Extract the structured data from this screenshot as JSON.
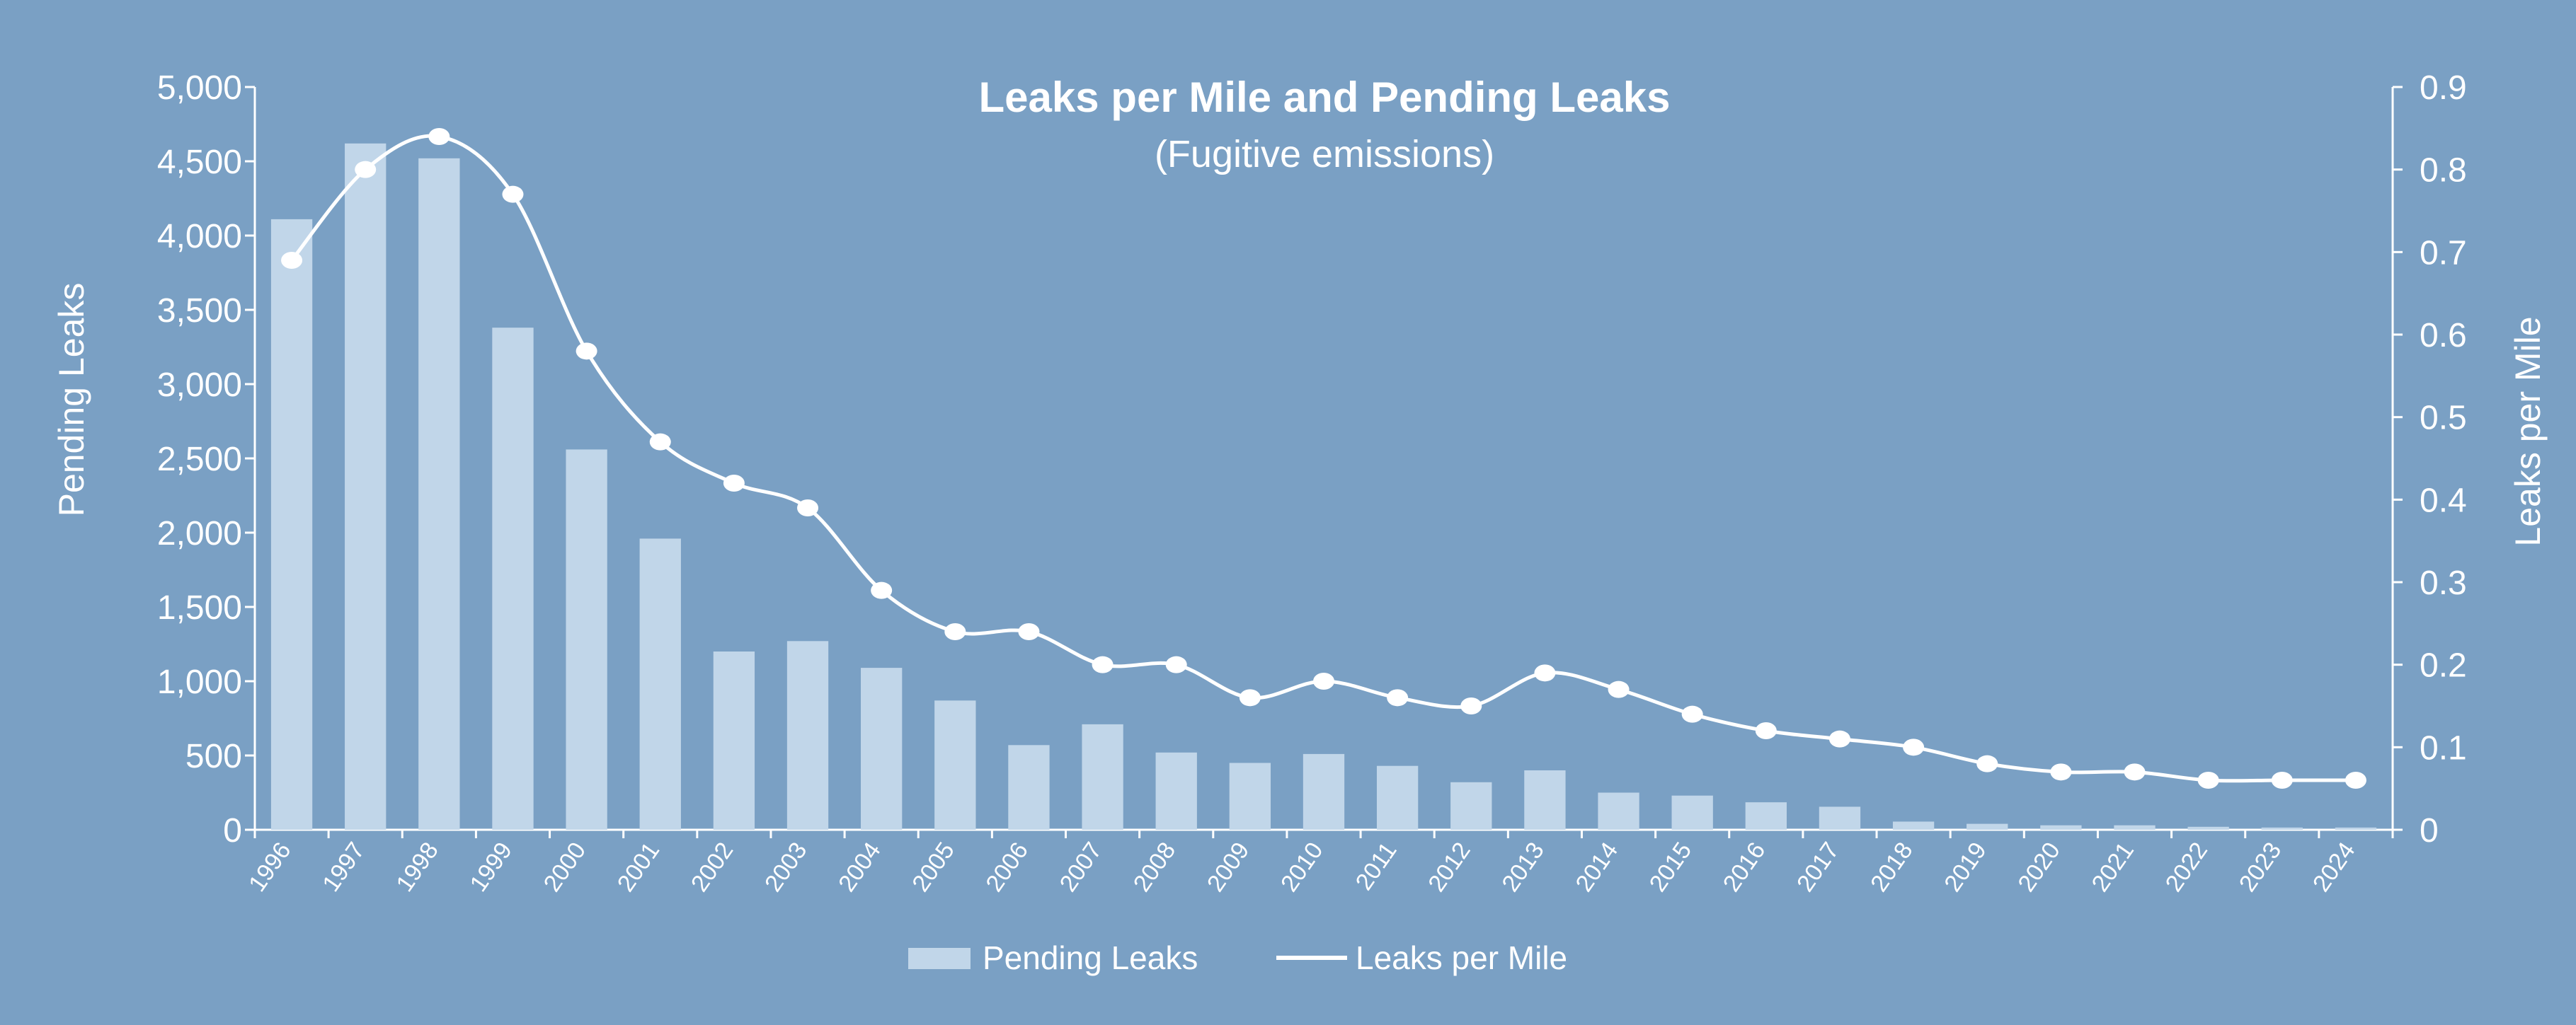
{
  "chart_data": {
    "type": "bar",
    "title": "Leaks per Mile and Pending Leaks",
    "subtitle": "(Fugitive emissions)",
    "categories": [
      "1996",
      "1997",
      "1998",
      "1999",
      "2000",
      "2001",
      "2002",
      "2003",
      "2004",
      "2005",
      "2006",
      "2007",
      "2008",
      "2009",
      "2010",
      "2011",
      "2012",
      "2013",
      "2014",
      "2015",
      "2016",
      "2017",
      "2018",
      "2019",
      "2020",
      "2021",
      "2022",
      "2023",
      "2024"
    ],
    "series": [
      {
        "name": "Pending Leaks",
        "type": "bar",
        "axis": "left",
        "values": [
          4110,
          4620,
          4520,
          3380,
          2560,
          1960,
          1200,
          1270,
          1090,
          870,
          570,
          710,
          520,
          450,
          510,
          430,
          320,
          400,
          250,
          230,
          185,
          155,
          55,
          40,
          30,
          30,
          20,
          15,
          15
        ]
      },
      {
        "name": "Leaks per Mile",
        "type": "line",
        "axis": "right",
        "values": [
          0.69,
          0.8,
          0.84,
          0.77,
          0.58,
          0.47,
          0.42,
          0.39,
          0.29,
          0.24,
          0.24,
          0.2,
          0.2,
          0.16,
          0.18,
          0.16,
          0.15,
          0.19,
          0.17,
          0.14,
          0.12,
          0.11,
          0.1,
          0.08,
          0.07,
          0.07,
          0.06,
          0.06,
          0.06
        ]
      }
    ],
    "y_left": {
      "label": "Pending Leaks",
      "min": 0,
      "max": 5000,
      "ticks": [
        "0",
        "500",
        "1,000",
        "1,500",
        "2,000",
        "2,500",
        "3,000",
        "3,500",
        "4,000",
        "4,500",
        "5,000"
      ]
    },
    "y_right": {
      "label": "Leaks per Mile",
      "min": 0,
      "max": 0.9,
      "ticks": [
        "0",
        "0.1",
        "0.2",
        "0.3",
        "0.4",
        "0.5",
        "0.6",
        "0.7",
        "0.8",
        "0.9"
      ]
    },
    "grid": false,
    "legend_position": "bottom-center",
    "colors": {
      "background": "#7aa0c4",
      "bar": "#c1d6e9",
      "line": "#ffffff",
      "text": "#ffffff"
    }
  }
}
